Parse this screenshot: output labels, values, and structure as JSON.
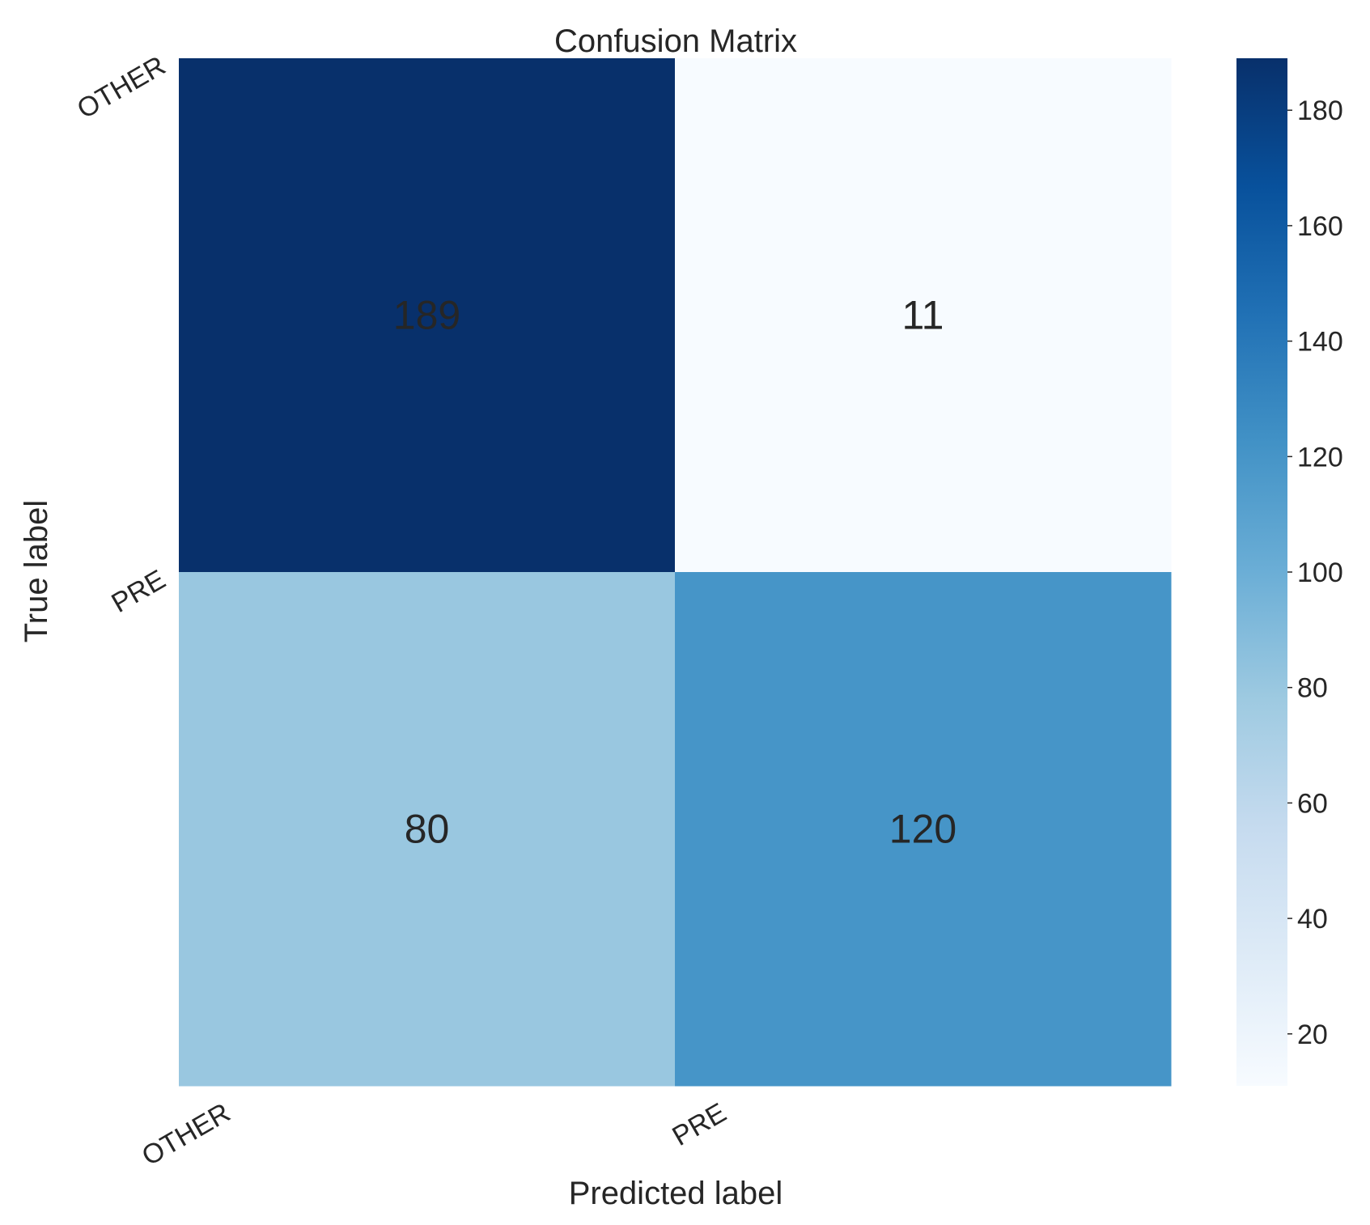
{
  "chart_data": {
    "type": "heatmap",
    "title": "Confusion Matrix",
    "xlabel": "Predicted label",
    "ylabel": "True label",
    "x_categories": [
      "OTHER",
      "PRE"
    ],
    "y_categories": [
      "OTHER",
      "PRE"
    ],
    "values": [
      [
        189,
        11
      ],
      [
        80,
        120
      ]
    ],
    "colormap": "Blues",
    "colorbar": {
      "range": [
        11,
        189
      ],
      "ticks": [
        "20",
        "40",
        "60",
        "80",
        "100",
        "120",
        "140",
        "160",
        "180"
      ]
    },
    "grid": false
  }
}
